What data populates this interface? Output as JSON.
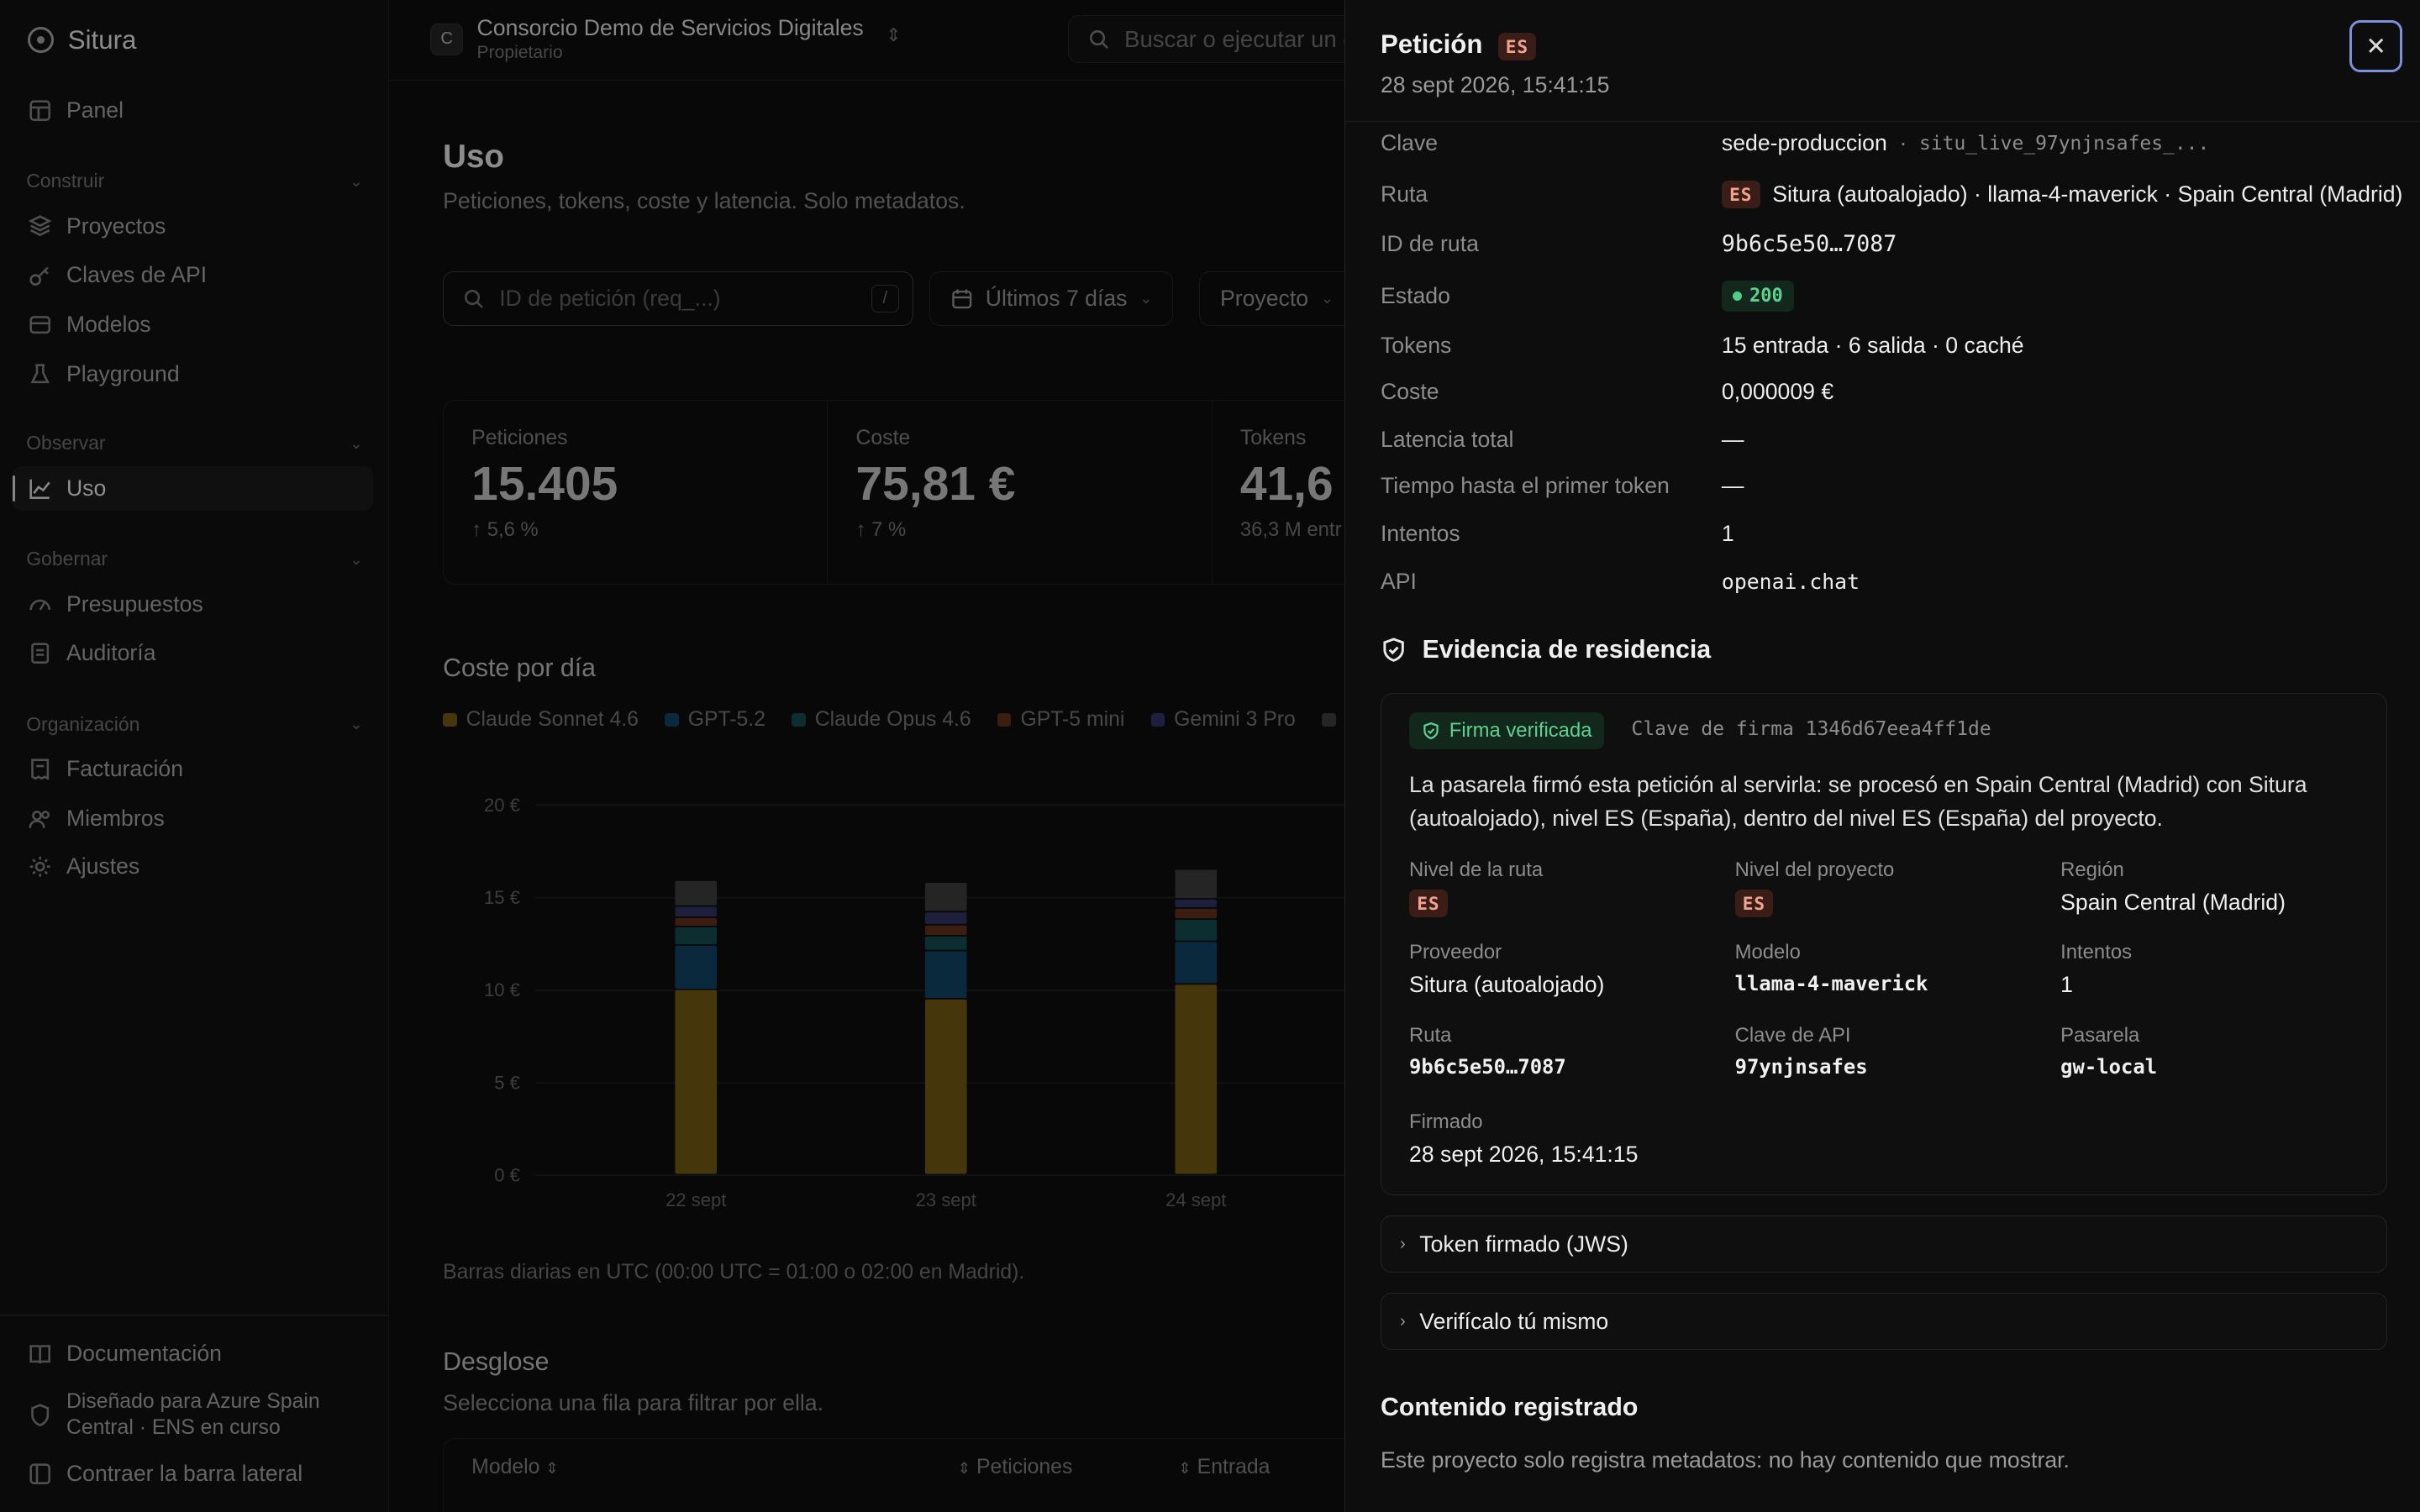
{
  "app": {
    "name": "Situra"
  },
  "sidebar": {
    "items": [
      {
        "label": "Panel"
      },
      {
        "label": "Proyectos"
      },
      {
        "label": "Claves de API"
      },
      {
        "label": "Modelos"
      },
      {
        "label": "Playground"
      },
      {
        "label": "Uso"
      },
      {
        "label": "Presupuestos"
      },
      {
        "label": "Auditoría"
      },
      {
        "label": "Facturación"
      },
      {
        "label": "Miembros"
      },
      {
        "label": "Ajustes"
      }
    ],
    "groups": [
      "Construir",
      "Observar",
      "Gobernar",
      "Organización"
    ],
    "footer": {
      "docs": "Documentación",
      "azure": "Diseñado para Azure Spain Central · ENS en curso",
      "collapse": "Contraer la barra lateral"
    }
  },
  "topbar": {
    "org_initial": "C",
    "org_name": "Consorcio Demo de Servicios Digitales",
    "org_role": "Propietario",
    "command_placeholder": "Buscar o ejecutar un c"
  },
  "page": {
    "title": "Uso",
    "subtitle": "Peticiones, tokens, coste y latencia. Solo metadatos.",
    "search_placeholder": "ID de petición (req_...)",
    "search_shortcut": "/",
    "range_filter": "Últimos 7 días",
    "project_filter": "Proyecto",
    "stats": [
      {
        "label": "Peticiones",
        "value": "15.405",
        "delta": "↑ 5,6 %"
      },
      {
        "label": "Coste",
        "value": "75,81 €",
        "delta": "↑ 7 %"
      },
      {
        "label": "Tokens",
        "value": "41,6",
        "delta": "36,3 M entr"
      }
    ],
    "cost_section_title": "Coste por día",
    "chart_note": "Barras diarias en UTC (00:00 UTC = 01:00 o 02:00 en Madrid).",
    "breakdown_title": "Desglose",
    "breakdown_subtitle": "Selecciona una fila para filtrar por ella.",
    "table_headers": [
      "Modelo",
      "Peticiones",
      "Entrada"
    ]
  },
  "chart_data": {
    "type": "bar",
    "stacked": true,
    "categories": [
      "22 sept",
      "23 sept",
      "24 sept"
    ],
    "y_ticks": [
      "20 €",
      "15 €",
      "10 €",
      "5 €",
      "0 €"
    ],
    "ylim": [
      0,
      20
    ],
    "series": [
      {
        "name": "Claude Sonnet 4.6",
        "color": "#6b5413",
        "values": [
          10.0,
          9.5,
          10.3
        ]
      },
      {
        "name": "GPT-5.2",
        "color": "#12405e",
        "values": [
          2.4,
          2.6,
          2.3
        ]
      },
      {
        "name": "Claude Opus 4.6",
        "color": "#15474b",
        "values": [
          1.0,
          0.8,
          1.2
        ]
      },
      {
        "name": "GPT-5 mini",
        "color": "#5b2e1b",
        "values": [
          0.5,
          0.6,
          0.6
        ]
      },
      {
        "name": "Gemini 3 Pro",
        "color": "#2e2e5e",
        "values": [
          0.6,
          0.7,
          0.5
        ]
      },
      {
        "name": "",
        "color": "#3a3a3a",
        "values": [
          1.4,
          1.6,
          1.6
        ]
      }
    ]
  },
  "drawer": {
    "title": "Petición",
    "tier": "ES",
    "timestamp": "28 sept 2026, 15:41:15",
    "rows": [
      {
        "key": "Clave",
        "value": "sede-produccion",
        "extra": "situ_live_97ynjnsafes_..."
      },
      {
        "key": "Ruta",
        "tier": "ES",
        "value": "Situra (autoalojado) · llama-4-maverick · Spain Central (Madrid)"
      },
      {
        "key": "ID de ruta",
        "value": "9b6c5e50…7087"
      },
      {
        "key": "Estado",
        "value": "200"
      },
      {
        "key": "Tokens",
        "value": "15 entrada · 6 salida · 0 caché"
      },
      {
        "key": "Coste",
        "value": "0,000009 €"
      },
      {
        "key": "Latencia total",
        "value": "—"
      },
      {
        "key": "Tiempo hasta el primer token",
        "value": "—"
      },
      {
        "key": "Intentos",
        "value": "1"
      },
      {
        "key": "API",
        "value": "openai.chat"
      }
    ],
    "evidence": {
      "title": "Evidencia de residencia",
      "verified": "Firma verificada",
      "signing_key": "Clave de firma 1346d67eea4ff1de",
      "description": "La pasarela firmó esta petición al servirla: se procesó en Spain Central (Madrid) con Situra (autoalojado), nivel ES (España), dentro del nivel ES (España) del proyecto.",
      "fields": [
        {
          "label": "Nivel de la ruta",
          "value": "ES"
        },
        {
          "label": "Nivel del proyecto",
          "value": "ES"
        },
        {
          "label": "Región",
          "value": "Spain Central (Madrid)"
        },
        {
          "label": "Proveedor",
          "value": "Situra (autoalojado)"
        },
        {
          "label": "Modelo",
          "value": "llama-4-maverick"
        },
        {
          "label": "Intentos",
          "value": "1"
        },
        {
          "label": "Ruta",
          "value": "9b6c5e50…7087"
        },
        {
          "label": "Clave de API",
          "value": "97ynjnsafes"
        },
        {
          "label": "Pasarela",
          "value": "gw-local"
        },
        {
          "label": "Firmado",
          "value": "28 sept 2026, 15:41:15"
        }
      ]
    },
    "accordions": [
      "Token firmado (JWS)",
      "Verifícalo tú mismo"
    ],
    "content": {
      "title": "Contenido registrado",
      "text": "Este proyecto solo registra metadatos: no hay contenido que mostrar."
    }
  }
}
